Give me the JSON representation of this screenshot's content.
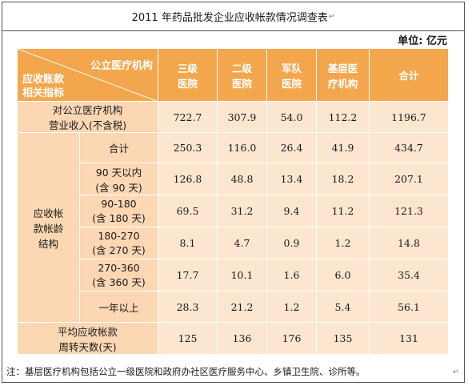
{
  "title": "2011 年药品批发企业应收帐款情况调查表",
  "title_mark": "↵",
  "unit": "单位: 亿元",
  "corner": {
    "top": "公立医疗机构",
    "bottom_line1": "应收账款",
    "bottom_line2": "相关指标"
  },
  "columns": [
    "三级\n医院",
    "二级\n医院",
    "军队\n医院",
    "基层医\n疗机构",
    "合计"
  ],
  "columns_split": [
    [
      "三级",
      "医院"
    ],
    [
      "二级",
      "医院"
    ],
    [
      "军队",
      "医院"
    ],
    [
      "基层医",
      "疗机构"
    ],
    [
      "合计"
    ]
  ],
  "revenue_row": {
    "label_line1": "对公立医疗机构",
    "label_line2": "营业收入(不含税)",
    "values": [
      "722.7",
      "307.9",
      "54.0",
      "112.2",
      "1196.7"
    ]
  },
  "aging_group": {
    "label_line1": "应收帐",
    "label_line2": "款帐龄",
    "label_line3": "结构",
    "rows": [
      {
        "line1": "合计",
        "line2": "",
        "values": [
          "250.3",
          "116.0",
          "26.4",
          "41.9",
          "434.7"
        ]
      },
      {
        "line1": "90 天以内",
        "line2": "(含 90 天)",
        "values": [
          "126.8",
          "48.8",
          "13.4",
          "18.2",
          "207.1"
        ]
      },
      {
        "line1": "90-180",
        "line2": "(含 180 天)",
        "values": [
          "69.5",
          "31.2",
          "9.4",
          "11.2",
          "121.3"
        ]
      },
      {
        "line1": "180-270",
        "line2": "(含 270 天)",
        "values": [
          "8.1",
          "4.7",
          "0.9",
          "1.2",
          "14.8"
        ]
      },
      {
        "line1": "270-360",
        "line2": "(含 360 天)",
        "values": [
          "17.7",
          "10.1",
          "1.6",
          "6.0",
          "35.4"
        ]
      },
      {
        "line1": "一年以上",
        "line2": "",
        "values": [
          "28.3",
          "21.2",
          "1.2",
          "5.4",
          "56.1"
        ]
      }
    ]
  },
  "turnover_row": {
    "label_line1": "平均应收帐款",
    "label_line2": "周转天数(天)",
    "values": [
      "125",
      "136",
      "176",
      "135",
      "131"
    ]
  },
  "note": "注：基层医疗机构包括公立一级医院和政府办社区医疗服务中心、乡镇卫生院、诊所等。",
  "note_mark": "↵",
  "colors": {
    "header": "#f4a64c",
    "label_bg": "#fbd7b4",
    "cell_bg": "#fde6cf",
    "border": "#ffffff"
  }
}
